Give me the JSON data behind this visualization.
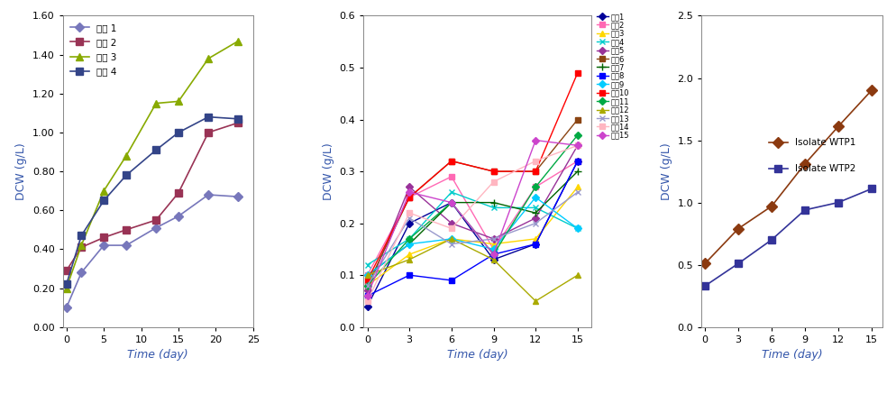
{
  "chart1": {
    "xlabel": "Time (day)",
    "ylabel": "DCW (g/L)",
    "xlim": [
      -0.5,
      25
    ],
    "ylim": [
      0.0,
      1.6
    ],
    "yticks": [
      0.0,
      0.2,
      0.4,
      0.6,
      0.8,
      1.0,
      1.2,
      1.4,
      1.6
    ],
    "xticks": [
      0,
      5,
      10,
      15,
      20,
      25
    ],
    "series": [
      {
        "label": "순쳄 1",
        "color": "#7777BB",
        "marker": "D",
        "markersize": 5,
        "x": [
          0,
          2,
          5,
          8,
          12,
          15,
          19,
          23
        ],
        "y": [
          0.1,
          0.28,
          0.42,
          0.42,
          0.51,
          0.57,
          0.68,
          0.67
        ]
      },
      {
        "label": "순쳄 2",
        "color": "#993355",
        "marker": "s",
        "markersize": 6,
        "x": [
          0,
          2,
          5,
          8,
          12,
          15,
          19,
          23
        ],
        "y": [
          0.29,
          0.41,
          0.46,
          0.5,
          0.55,
          0.69,
          1.0,
          1.05
        ]
      },
      {
        "label": "순쳄 3",
        "color": "#88AA00",
        "marker": "^",
        "markersize": 6,
        "x": [
          0,
          2,
          5,
          8,
          12,
          15,
          19,
          23
        ],
        "y": [
          0.2,
          0.42,
          0.7,
          0.88,
          1.15,
          1.16,
          1.38,
          1.47
        ]
      },
      {
        "label": "순쳄 4",
        "color": "#334488",
        "marker": "s",
        "markersize": 6,
        "x": [
          0,
          2,
          5,
          8,
          12,
          15,
          19,
          23
        ],
        "y": [
          0.22,
          0.47,
          0.65,
          0.78,
          0.91,
          1.0,
          1.08,
          1.07
        ]
      }
    ]
  },
  "chart2": {
    "xlabel": "Time (day)",
    "ylabel": "DCW (g/L)",
    "xlim": [
      -0.3,
      16
    ],
    "ylim": [
      0,
      0.6
    ],
    "yticks": [
      0,
      0.1,
      0.2,
      0.3,
      0.4,
      0.5,
      0.6
    ],
    "xticks": [
      0,
      3,
      6,
      9,
      12,
      15
    ],
    "series": [
      {
        "label": "충남1",
        "color": "#000099",
        "marker": "D",
        "markersize": 4,
        "x": [
          0,
          3,
          6,
          9,
          12,
          15
        ],
        "y": [
          0.04,
          0.2,
          0.24,
          0.13,
          0.16,
          0.32
        ]
      },
      {
        "label": "충남2",
        "color": "#FF69B4",
        "marker": "s",
        "markersize": 4,
        "x": [
          0,
          3,
          6,
          9,
          12,
          15
        ],
        "y": [
          0.1,
          0.25,
          0.29,
          0.15,
          0.27,
          0.32
        ]
      },
      {
        "label": "충남3",
        "color": "#FFD700",
        "marker": "^",
        "markersize": 4,
        "x": [
          0,
          3,
          6,
          9,
          12,
          15
        ],
        "y": [
          0.08,
          0.14,
          0.17,
          0.16,
          0.17,
          0.27
        ]
      },
      {
        "label": "충남4",
        "color": "#00CCCC",
        "marker": "x",
        "markersize": 4,
        "x": [
          0,
          3,
          6,
          9,
          12,
          15
        ],
        "y": [
          0.12,
          0.17,
          0.26,
          0.23,
          0.23,
          0.19
        ]
      },
      {
        "label": "충남5",
        "color": "#993399",
        "marker": "D",
        "markersize": 4,
        "x": [
          0,
          3,
          6,
          9,
          12,
          15
        ],
        "y": [
          0.07,
          0.27,
          0.2,
          0.17,
          0.21,
          0.35
        ]
      },
      {
        "label": "충남6",
        "color": "#8B4513",
        "marker": "s",
        "markersize": 5,
        "x": [
          0,
          3,
          6,
          9,
          12,
          15
        ],
        "y": [
          0.08,
          0.25,
          0.32,
          0.3,
          0.3,
          0.4
        ]
      },
      {
        "label": "충남7",
        "color": "#006400",
        "marker": "+",
        "markersize": 6,
        "x": [
          0,
          3,
          6,
          9,
          12,
          15
        ],
        "y": [
          0.1,
          0.16,
          0.24,
          0.24,
          0.22,
          0.3
        ]
      },
      {
        "label": "충남8",
        "color": "#0000FF",
        "marker": "s",
        "markersize": 4,
        "x": [
          0,
          3,
          6,
          9,
          12,
          15
        ],
        "y": [
          0.06,
          0.1,
          0.09,
          0.14,
          0.16,
          0.32
        ]
      },
      {
        "label": "충남9",
        "color": "#00CCFF",
        "marker": "D",
        "markersize": 4,
        "x": [
          0,
          3,
          6,
          9,
          12,
          15
        ],
        "y": [
          0.1,
          0.16,
          0.17,
          0.15,
          0.25,
          0.19
        ]
      },
      {
        "label": "충남10",
        "color": "#FF0000",
        "marker": "s",
        "markersize": 5,
        "x": [
          0,
          3,
          6,
          9,
          12,
          15
        ],
        "y": [
          0.09,
          0.25,
          0.32,
          0.3,
          0.3,
          0.49
        ]
      },
      {
        "label": "충남11",
        "color": "#00AA44",
        "marker": "D",
        "markersize": 4,
        "x": [
          0,
          3,
          6,
          9,
          12,
          15
        ],
        "y": [
          0.08,
          0.17,
          0.24,
          0.14,
          0.27,
          0.37
        ]
      },
      {
        "label": "충남12",
        "color": "#AAAA00",
        "marker": "^",
        "markersize": 4,
        "x": [
          0,
          3,
          6,
          9,
          12,
          15
        ],
        "y": [
          0.1,
          0.13,
          0.17,
          0.13,
          0.05,
          0.1
        ]
      },
      {
        "label": "충남13",
        "color": "#9999CC",
        "marker": "x",
        "markersize": 5,
        "x": [
          0,
          3,
          6,
          9,
          12,
          15
        ],
        "y": [
          0.08,
          0.21,
          0.16,
          0.17,
          0.2,
          0.26
        ]
      },
      {
        "label": "충남14",
        "color": "#FFB6C1",
        "marker": "s",
        "markersize": 4,
        "x": [
          0,
          3,
          6,
          9,
          12,
          15
        ],
        "y": [
          0.05,
          0.22,
          0.19,
          0.28,
          0.32,
          0.35
        ]
      },
      {
        "label": "충남15",
        "color": "#CC44CC",
        "marker": "D",
        "markersize": 4,
        "x": [
          0,
          3,
          6,
          9,
          12,
          15
        ],
        "y": [
          0.06,
          0.26,
          0.24,
          0.14,
          0.36,
          0.35
        ]
      }
    ]
  },
  "chart3": {
    "xlabel": "Time (day)",
    "ylabel": "DCW (g/L)",
    "xlim": [
      -0.3,
      16
    ],
    "ylim": [
      0.0,
      2.5
    ],
    "yticks": [
      0.0,
      0.5,
      1.0,
      1.5,
      2.0,
      2.5
    ],
    "xticks": [
      0,
      3,
      6,
      9,
      12,
      15
    ],
    "series": [
      {
        "label": "Isolate WTP1",
        "color": "#8B3A10",
        "marker": "D",
        "markersize": 6,
        "x": [
          0,
          3,
          6,
          9,
          12,
          15
        ],
        "y": [
          0.51,
          0.79,
          0.97,
          1.31,
          1.61,
          1.9
        ]
      },
      {
        "label": "Isolate WTP2",
        "color": "#333399",
        "marker": "s",
        "markersize": 6,
        "x": [
          0,
          3,
          6,
          9,
          12,
          15
        ],
        "y": [
          0.33,
          0.51,
          0.7,
          0.94,
          1.0,
          1.11
        ]
      }
    ]
  },
  "bg_color": "#FFFFFF",
  "box_color": "#AAAAAA",
  "label_color_blue": "#3355AA",
  "tick_color": "#000000",
  "axis_label_color": "#3355AA"
}
